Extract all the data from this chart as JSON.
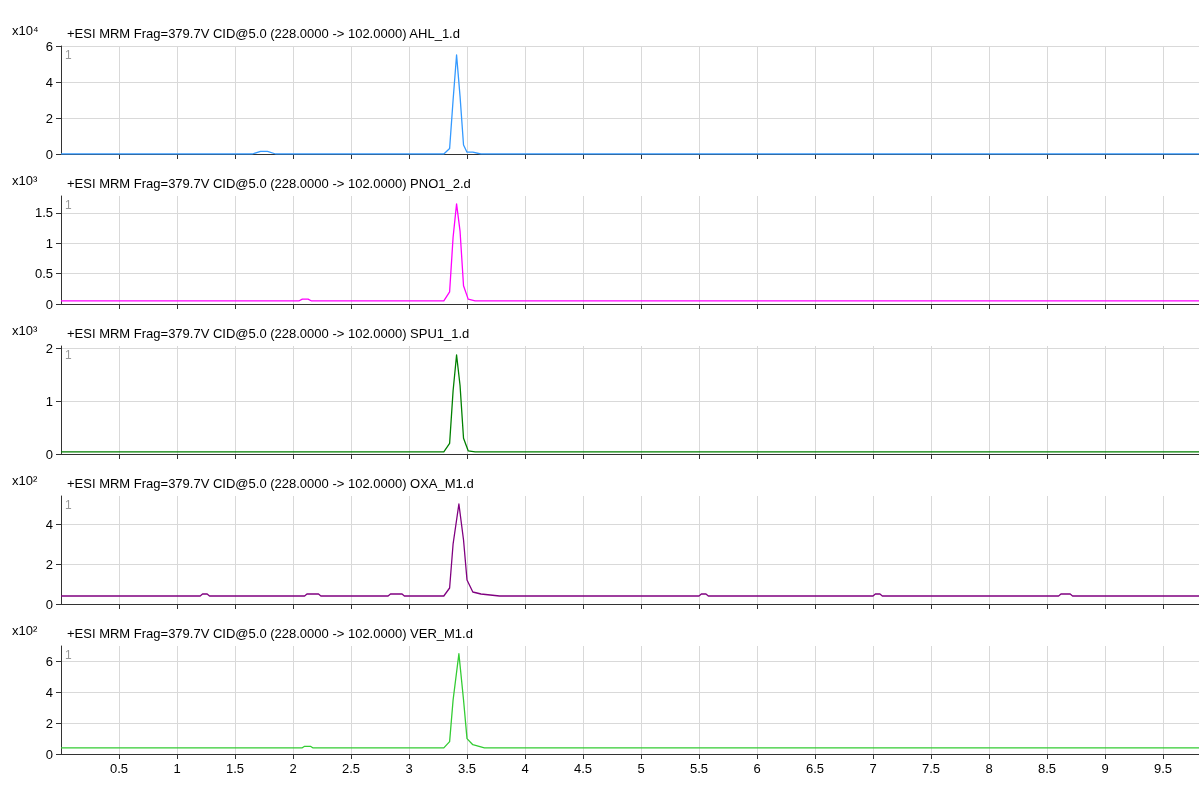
{
  "chart_data": [
    {
      "type": "line",
      "title": "+ESI MRM Frag=379.7V CID@5.0 (228.0000 -> 102.0000) AHL_1.d",
      "ylabel": "x10⁴",
      "annotations": [
        "1"
      ],
      "grid": true,
      "tick_labels": "y",
      "xlim": [
        0,
        9.81
      ],
      "xticks": [
        0.5,
        1,
        1.5,
        2,
        2.5,
        3,
        3.5,
        4,
        4.5,
        5,
        5.5,
        6,
        6.5,
        7,
        7.5,
        8,
        8.5,
        9,
        9.5
      ],
      "ylim": [
        0,
        6
      ],
      "yticks": [
        0,
        2,
        4,
        6
      ],
      "series": [
        {
          "color": "#3399ff",
          "x": [
            0,
            1.65,
            1.72,
            1.78,
            1.85,
            3.3,
            3.35,
            3.38,
            3.41,
            3.44,
            3.47,
            3.5,
            3.55,
            3.62,
            9.81
          ],
          "values": [
            0,
            0,
            0.15,
            0.15,
            0,
            0,
            0.3,
            3,
            5.5,
            3.2,
            0.5,
            0.1,
            0.1,
            0,
            0
          ]
        }
      ]
    },
    {
      "type": "line",
      "title": "+ESI MRM Frag=379.7V CID@5.0 (228.0000 -> 102.0000) PNO1_2.d",
      "ylabel": "x10³",
      "annotations": [
        "1"
      ],
      "grid": true,
      "tick_labels": "y",
      "xlim": [
        0,
        9.81
      ],
      "xticks": [
        0.5,
        1,
        1.5,
        2,
        2.5,
        3,
        3.5,
        4,
        4.5,
        5,
        5.5,
        6,
        6.5,
        7,
        7.5,
        8,
        8.5,
        9,
        9.5
      ],
      "ylim": [
        0,
        1.78
      ],
      "yticks": [
        0,
        0.5,
        1,
        1.5
      ],
      "series": [
        {
          "color": "#ff00ff",
          "x": [
            0,
            2.05,
            2.08,
            2.13,
            2.16,
            3.3,
            3.35,
            3.38,
            3.41,
            3.44,
            3.47,
            3.51,
            3.57,
            9.81
          ],
          "values": [
            0.05,
            0.05,
            0.08,
            0.08,
            0.05,
            0.05,
            0.2,
            1.1,
            1.65,
            1.2,
            0.3,
            0.08,
            0.05,
            0.05
          ]
        }
      ]
    },
    {
      "type": "line",
      "title": "+ESI MRM Frag=379.7V CID@5.0 (228.0000 -> 102.0000) SPU1_1.d",
      "ylabel": "x10³",
      "annotations": [
        "1"
      ],
      "grid": true,
      "tick_labels": "y",
      "xlim": [
        0,
        9.81
      ],
      "xticks": [
        0.5,
        1,
        1.5,
        2,
        2.5,
        3,
        3.5,
        4,
        4.5,
        5,
        5.5,
        6,
        6.5,
        7,
        7.5,
        8,
        8.5,
        9,
        9.5
      ],
      "ylim": [
        0,
        2.05
      ],
      "yticks": [
        0,
        1,
        2
      ],
      "series": [
        {
          "color": "#008000",
          "x": [
            0,
            3.3,
            3.35,
            3.38,
            3.41,
            3.44,
            3.47,
            3.51,
            3.57,
            9.81
          ],
          "values": [
            0.04,
            0.04,
            0.2,
            1.2,
            1.88,
            1.3,
            0.3,
            0.06,
            0.04,
            0.04
          ]
        }
      ]
    },
    {
      "type": "line",
      "title": "+ESI MRM Frag=379.7V CID@5.0 (228.0000 -> 102.0000) OXA_M1.d",
      "ylabel": "x10²",
      "annotations": [
        "1"
      ],
      "grid": true,
      "tick_labels": "y",
      "xlim": [
        0,
        9.81
      ],
      "xticks": [
        0.5,
        1,
        1.5,
        2,
        2.5,
        3,
        3.5,
        4,
        4.5,
        5,
        5.5,
        6,
        6.5,
        7,
        7.5,
        8,
        8.5,
        9,
        9.5
      ],
      "ylim": [
        0,
        5.4
      ],
      "yticks": [
        0,
        2,
        4
      ],
      "series": [
        {
          "color": "#800080",
          "x": [
            0,
            1.2,
            1.22,
            1.26,
            1.28,
            2.1,
            2.12,
            2.22,
            2.24,
            2.82,
            2.84,
            2.94,
            2.96,
            3.3,
            3.35,
            3.38,
            3.43,
            3.47,
            3.5,
            3.55,
            3.62,
            3.78,
            5.5,
            5.52,
            5.56,
            5.58,
            7.0,
            7.02,
            7.06,
            7.08,
            8.6,
            8.62,
            8.7,
            8.72,
            9.81
          ],
          "values": [
            0.4,
            0.4,
            0.5,
            0.5,
            0.4,
            0.4,
            0.5,
            0.5,
            0.4,
            0.4,
            0.5,
            0.5,
            0.4,
            0.4,
            0.8,
            3,
            5,
            3.2,
            1.2,
            0.6,
            0.5,
            0.4,
            0.4,
            0.5,
            0.5,
            0.4,
            0.4,
            0.5,
            0.5,
            0.4,
            0.4,
            0.5,
            0.5,
            0.4,
            0.4
          ]
        }
      ]
    },
    {
      "type": "line",
      "title": "+ESI MRM Frag=379.7V CID@5.0 (228.0000 -> 102.0000) VER_M1.d",
      "ylabel": "x10²",
      "annotations": [
        "1"
      ],
      "grid": true,
      "xlim": [
        0,
        9.81
      ],
      "xticks": [
        0.5,
        1,
        1.5,
        2,
        2.5,
        3,
        3.5,
        4,
        4.5,
        5,
        5.5,
        6,
        6.5,
        7,
        7.5,
        8,
        8.5,
        9,
        9.5
      ],
      "ylim": [
        0,
        7
      ],
      "yticks": [
        0,
        2,
        4,
        6
      ],
      "series": [
        {
          "color": "#33cc33",
          "x": [
            0,
            2.08,
            2.1,
            2.15,
            2.17,
            3.3,
            3.35,
            3.38,
            3.43,
            3.47,
            3.5,
            3.55,
            3.65,
            9.81
          ],
          "values": [
            0.4,
            0.4,
            0.5,
            0.5,
            0.4,
            0.4,
            0.8,
            3.5,
            6.5,
            3.5,
            1,
            0.6,
            0.4,
            0.4
          ]
        }
      ]
    }
  ]
}
